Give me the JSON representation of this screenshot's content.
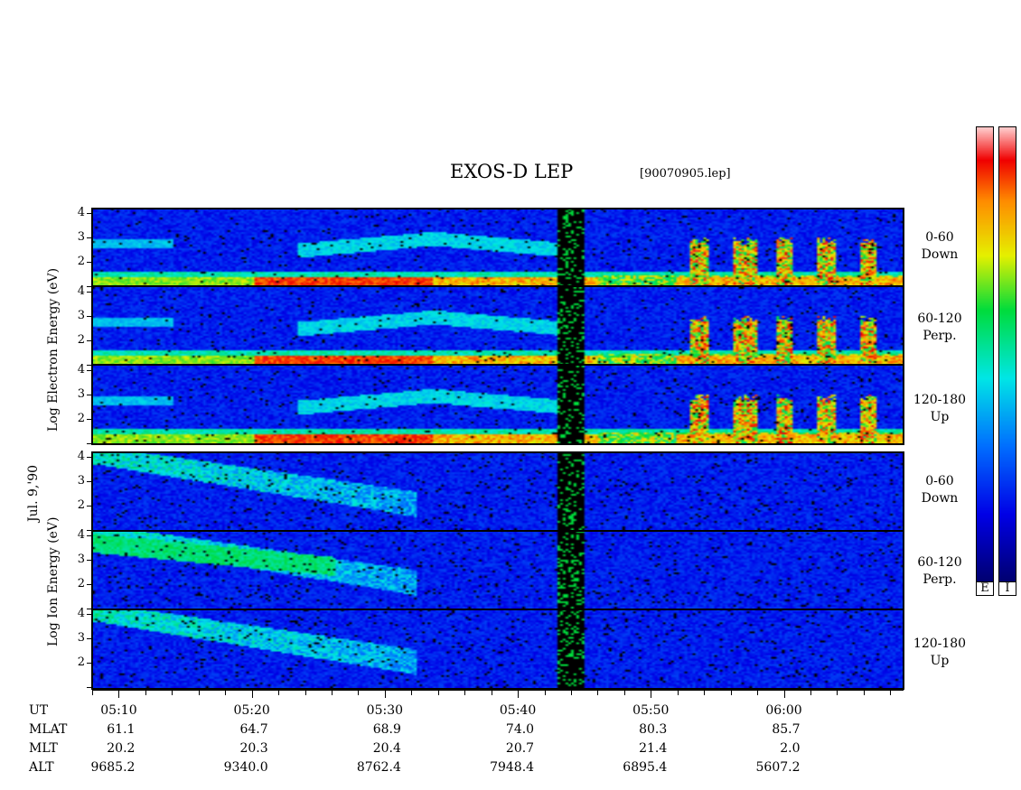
{
  "header": {
    "title": "EXOS-D LEP",
    "file": "[90070905.lep]"
  },
  "left_labels": {
    "date": "Jul. 9,'90",
    "electron": "Log  Electron  Energy (eV)",
    "ion": "Log   Ion   Energy (eV)"
  },
  "chart_data": {
    "type": "heatmap",
    "x_axis": {
      "quantity": "UT",
      "range": [
        "05:08",
        "06:09"
      ],
      "tick_labels": [
        "05:10",
        "05:20",
        "05:30",
        "05:40",
        "05:50",
        "06:00"
      ]
    },
    "y_axis": {
      "range": [
        1,
        4.2
      ],
      "tick_labels": [
        "2",
        "3",
        "4"
      ]
    },
    "electron_panels": [
      {
        "label": "0-60",
        "label2": "Down"
      },
      {
        "label": "60-120",
        "label2": "Perp."
      },
      {
        "label": "120-180",
        "label2": "Up"
      }
    ],
    "ion_panels": [
      {
        "label": "0-60",
        "label2": "Down"
      },
      {
        "label": "60-120",
        "label2": "Perp."
      },
      {
        "label": "120-180",
        "label2": "Up"
      }
    ],
    "colorbar_labels": [
      "E",
      "I"
    ]
  },
  "orbit_table": {
    "rows": [
      {
        "label": "UT",
        "values": [
          "",
          "",
          "",
          "",
          "",
          ""
        ]
      },
      {
        "label": "MLAT",
        "values": [
          "61.1",
          "64.7",
          "68.9",
          "74.0",
          "80.3",
          "85.7"
        ]
      },
      {
        "label": "MLT",
        "values": [
          "20.2",
          "20.3",
          "20.4",
          "20.7",
          "21.4",
          "2.0"
        ]
      },
      {
        "label": "ALT",
        "values": [
          "9685.2",
          "9340.0",
          "8762.4",
          "7948.4",
          "6895.4",
          "5607.2"
        ]
      }
    ]
  },
  "colors": {
    "background": "#00008c",
    "low": "#0000ff",
    "high": "#ff0000"
  }
}
